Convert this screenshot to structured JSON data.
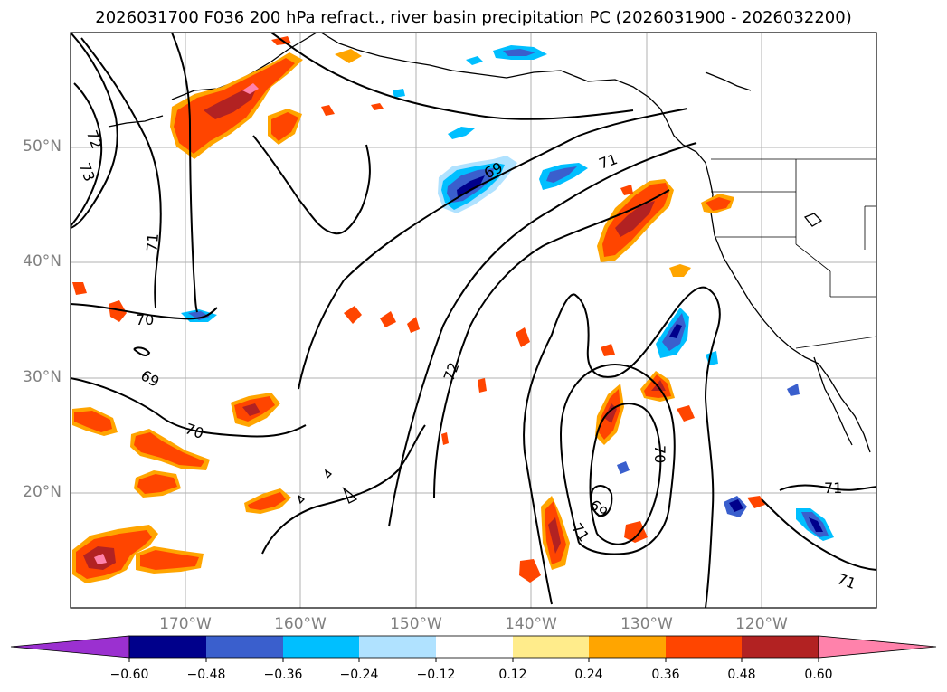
{
  "title": "2026031700 F036 200 hPa refract., river basin precipitation PC (2026031900 - 2026032200)",
  "axes": {
    "lat_ticks": [
      "50°N",
      "40°N",
      "30°N",
      "20°N"
    ],
    "lon_ticks": [
      "170°W",
      "160°W",
      "150°W",
      "140°W",
      "130°W",
      "120°W"
    ]
  },
  "colorbar": {
    "levels": [
      "−0.60",
      "−0.48",
      "−0.36",
      "−0.24",
      "−0.12",
      "0.12",
      "0.24",
      "0.36",
      "0.48",
      "0.60"
    ],
    "colors": [
      "#9b30d0",
      "#00008b",
      "#3a5fcd",
      "#00bfff",
      "#b0e2ff",
      "#ffffff",
      "#ffec8b",
      "#ffa500",
      "#ff4500",
      "#b22222",
      "#ff82ab"
    ]
  },
  "contour_labels": [
    "72",
    "73",
    "71",
    "70",
    "69",
    "69",
    "71",
    "72",
    "70",
    "69",
    "71",
    "70",
    "71"
  ]
}
